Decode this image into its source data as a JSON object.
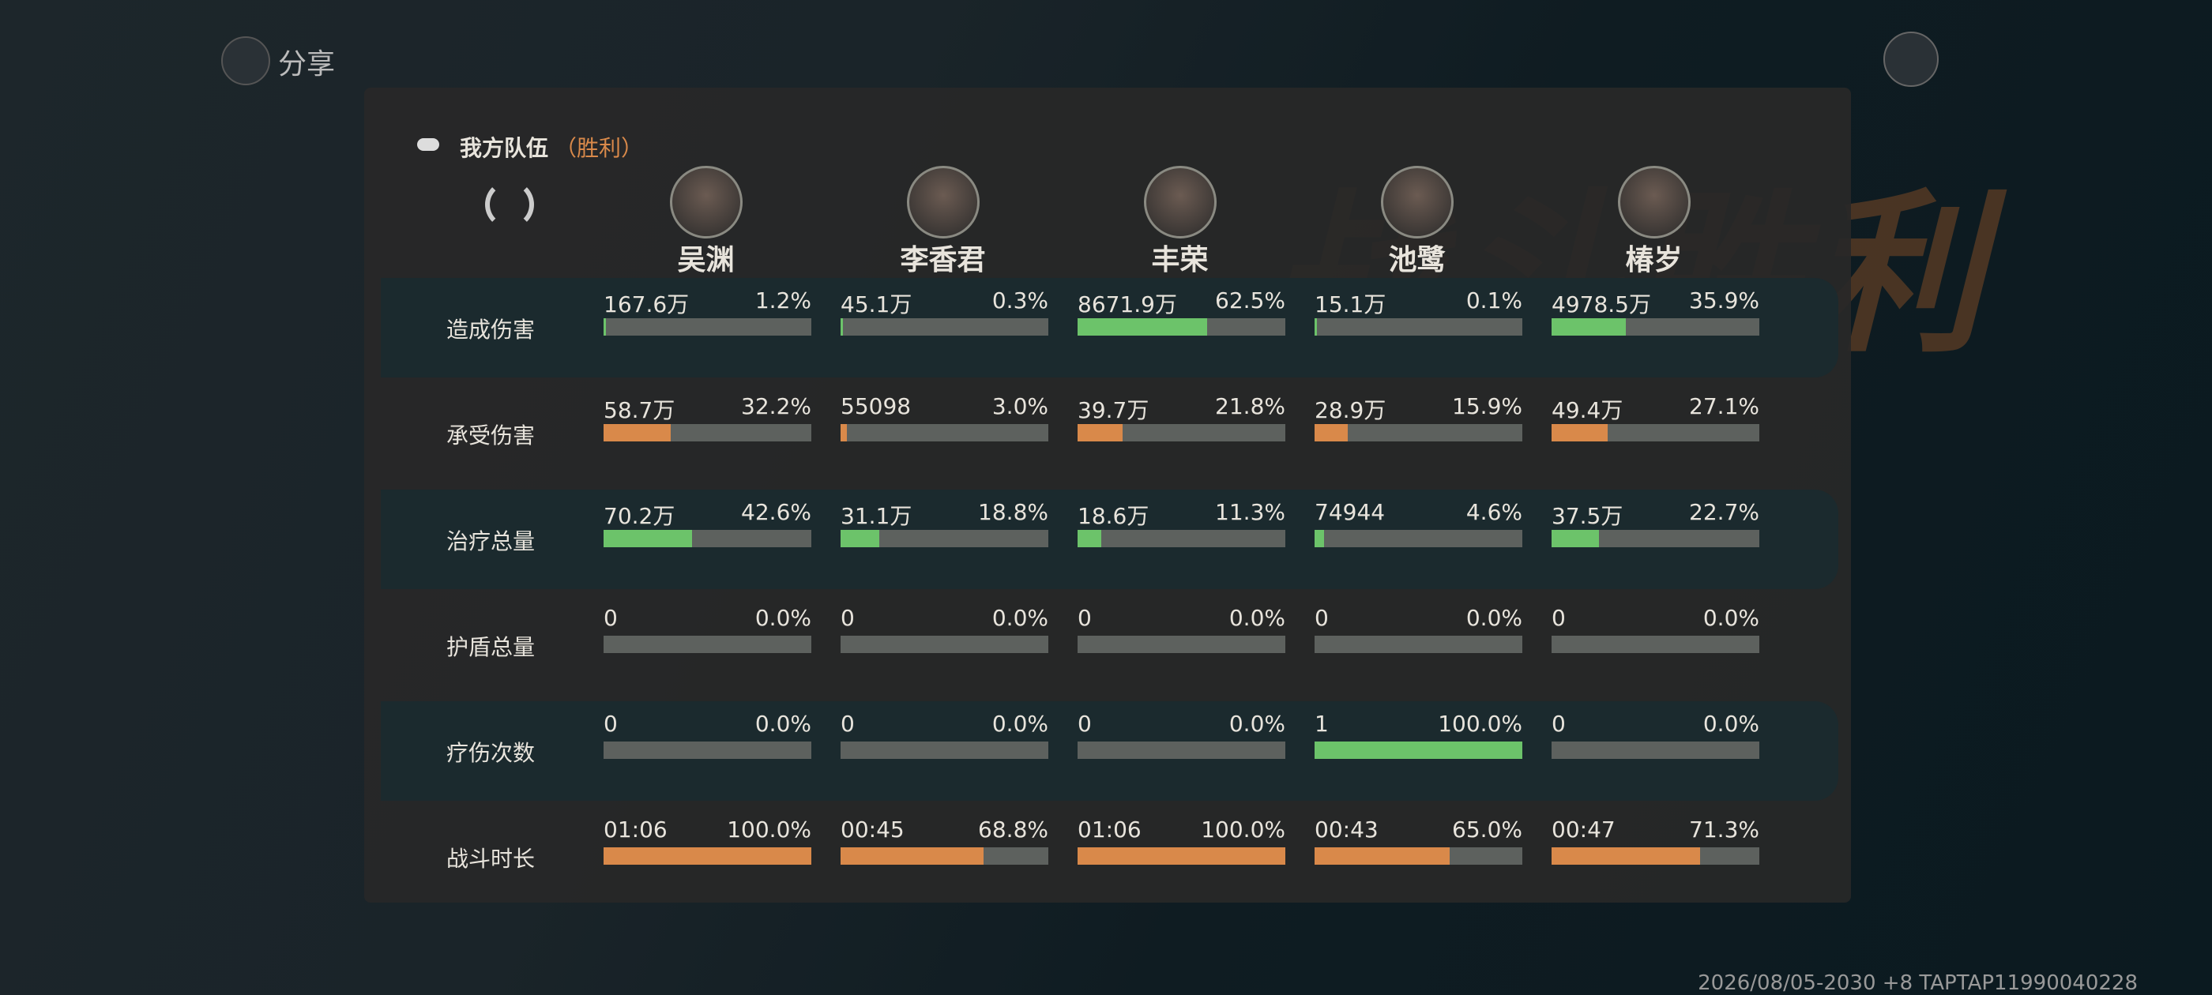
{
  "header": {
    "share": "分享"
  },
  "banner": "战斗胜利",
  "team": {
    "title": "我方队伍",
    "result": "（胜利）"
  },
  "heroes": [
    "吴渊",
    "李香君",
    "丰荣",
    "池鹭",
    "椿岁"
  ],
  "rows": [
    {
      "label": "造成伤害",
      "color": "#6cc36a",
      "cells": [
        {
          "value": "167.6万",
          "share": 1.2,
          "share_label": "1.2%"
        },
        {
          "value": "45.1万",
          "share": 0.3,
          "share_label": "0.3%"
        },
        {
          "value": "8671.9万",
          "share": 62.5,
          "share_label": "62.5%"
        },
        {
          "value": "15.1万",
          "share": 0.1,
          "share_label": "0.1%"
        },
        {
          "value": "4978.5万",
          "share": 35.9,
          "share_label": "35.9%"
        }
      ]
    },
    {
      "label": "承受伤害",
      "color": "#d9894a",
      "cells": [
        {
          "value": "58.7万",
          "share": 32.2,
          "share_label": "32.2%"
        },
        {
          "value": "55098",
          "share": 3.0,
          "share_label": "3.0%"
        },
        {
          "value": "39.7万",
          "share": 21.8,
          "share_label": "21.8%"
        },
        {
          "value": "28.9万",
          "share": 15.9,
          "share_label": "15.9%"
        },
        {
          "value": "49.4万",
          "share": 27.1,
          "share_label": "27.1%"
        }
      ]
    },
    {
      "label": "治疗总量",
      "color": "#6cc36a",
      "cells": [
        {
          "value": "70.2万",
          "share": 42.6,
          "share_label": "42.6%"
        },
        {
          "value": "31.1万",
          "share": 18.8,
          "share_label": "18.8%"
        },
        {
          "value": "18.6万",
          "share": 11.3,
          "share_label": "11.3%"
        },
        {
          "value": "74944",
          "share": 4.6,
          "share_label": "4.6%"
        },
        {
          "value": "37.5万",
          "share": 22.7,
          "share_label": "22.7%"
        }
      ]
    },
    {
      "label": "护盾总量",
      "color": "#6cc36a",
      "cells": [
        {
          "value": "0",
          "share": 0.0,
          "share_label": "0.0%"
        },
        {
          "value": "0",
          "share": 0.0,
          "share_label": "0.0%"
        },
        {
          "value": "0",
          "share": 0.0,
          "share_label": "0.0%"
        },
        {
          "value": "0",
          "share": 0.0,
          "share_label": "0.0%"
        },
        {
          "value": "0",
          "share": 0.0,
          "share_label": "0.0%"
        }
      ]
    },
    {
      "label": "疗伤次数",
      "color": "#6cc36a",
      "cells": [
        {
          "value": "0",
          "share": 0.0,
          "share_label": "0.0%"
        },
        {
          "value": "0",
          "share": 0.0,
          "share_label": "0.0%"
        },
        {
          "value": "0",
          "share": 0.0,
          "share_label": "0.0%"
        },
        {
          "value": "1",
          "share": 100.0,
          "share_label": "100.0%"
        },
        {
          "value": "0",
          "share": 0.0,
          "share_label": "0.0%"
        }
      ]
    },
    {
      "label": "战斗时长",
      "color": "#d9894a",
      "cells": [
        {
          "value": "01:06",
          "share": 100.0,
          "share_label": "100.0%"
        },
        {
          "value": "00:45",
          "share": 68.8,
          "share_label": "68.8%"
        },
        {
          "value": "01:06",
          "share": 100.0,
          "share_label": "100.0%"
        },
        {
          "value": "00:43",
          "share": 65.0,
          "share_label": "65.0%"
        },
        {
          "value": "00:47",
          "share": 71.3,
          "share_label": "71.3%"
        }
      ]
    }
  ],
  "footer": "2026/08/05-2030 +8 TAPTAP11990040228"
}
